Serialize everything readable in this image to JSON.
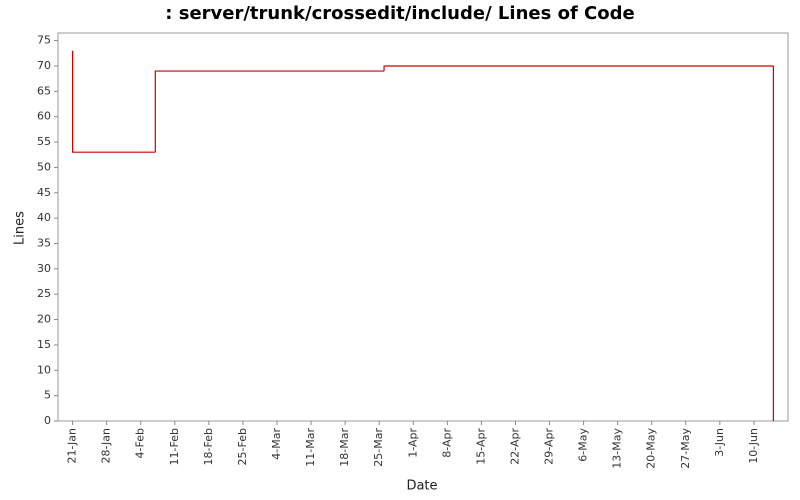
{
  "chart_data": {
    "type": "step",
    "title": ": server/trunk/crossedit/include/ Lines of Code",
    "x_label": "Date",
    "y_label": "Lines",
    "x": [
      "21-Jan",
      "21-Jan",
      "7-Feb",
      "26-Mar",
      "14-Jun"
    ],
    "series": [
      {
        "name": "Lines",
        "color": "#cc0000",
        "values": [
          73,
          53,
          69,
          70,
          0
        ]
      }
    ],
    "xlim": [
      "18-Jan",
      "17-Jun"
    ],
    "xticks": [
      "21-Jan",
      "28-Jan",
      "4-Feb",
      "11-Feb",
      "18-Feb",
      "25-Feb",
      "4-Mar",
      "11-Mar",
      "18-Mar",
      "25-Mar",
      "1-Apr",
      "8-Apr",
      "15-Apr",
      "22-Apr",
      "29-Apr",
      "6-May",
      "13-May",
      "20-May",
      "27-May",
      "3-Jun",
      "10-Jun"
    ],
    "ylim": [
      0,
      76.5
    ],
    "yticks": [
      0,
      5,
      10,
      15,
      20,
      25,
      30,
      35,
      40,
      45,
      50,
      55,
      60,
      65,
      70,
      75
    ],
    "grid": false
  }
}
